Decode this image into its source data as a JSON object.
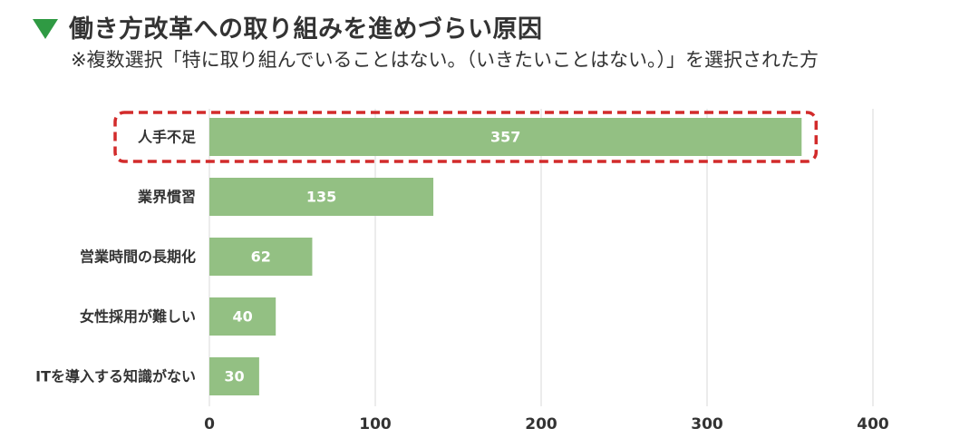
{
  "header": {
    "title": "働き方改革への取り組みを進めづらい原因",
    "subtitle": "※複数選択「特に取り組んでいることはない。（いきたいことはない。）」を選択された方"
  },
  "colors": {
    "bar": "#93c083",
    "highlight": "#d22b2b",
    "title_marker": "#2f9a43",
    "grid": "#e6e6e6"
  },
  "chart_data": {
    "type": "bar",
    "orientation": "horizontal",
    "title": "働き方改革への取り組みを進めづらい原因",
    "categories": [
      "人手不足",
      "業界慣習",
      "営業時間の長期化",
      "女性採用が難しい",
      "ITを導入する知識がない"
    ],
    "values": [
      357,
      135,
      62,
      40,
      30
    ],
    "xlim": [
      0,
      400
    ],
    "xticks": [
      0,
      100,
      200,
      300,
      400
    ],
    "highlighted_category": "人手不足",
    "grid": true,
    "xlabel": "",
    "ylabel": ""
  }
}
